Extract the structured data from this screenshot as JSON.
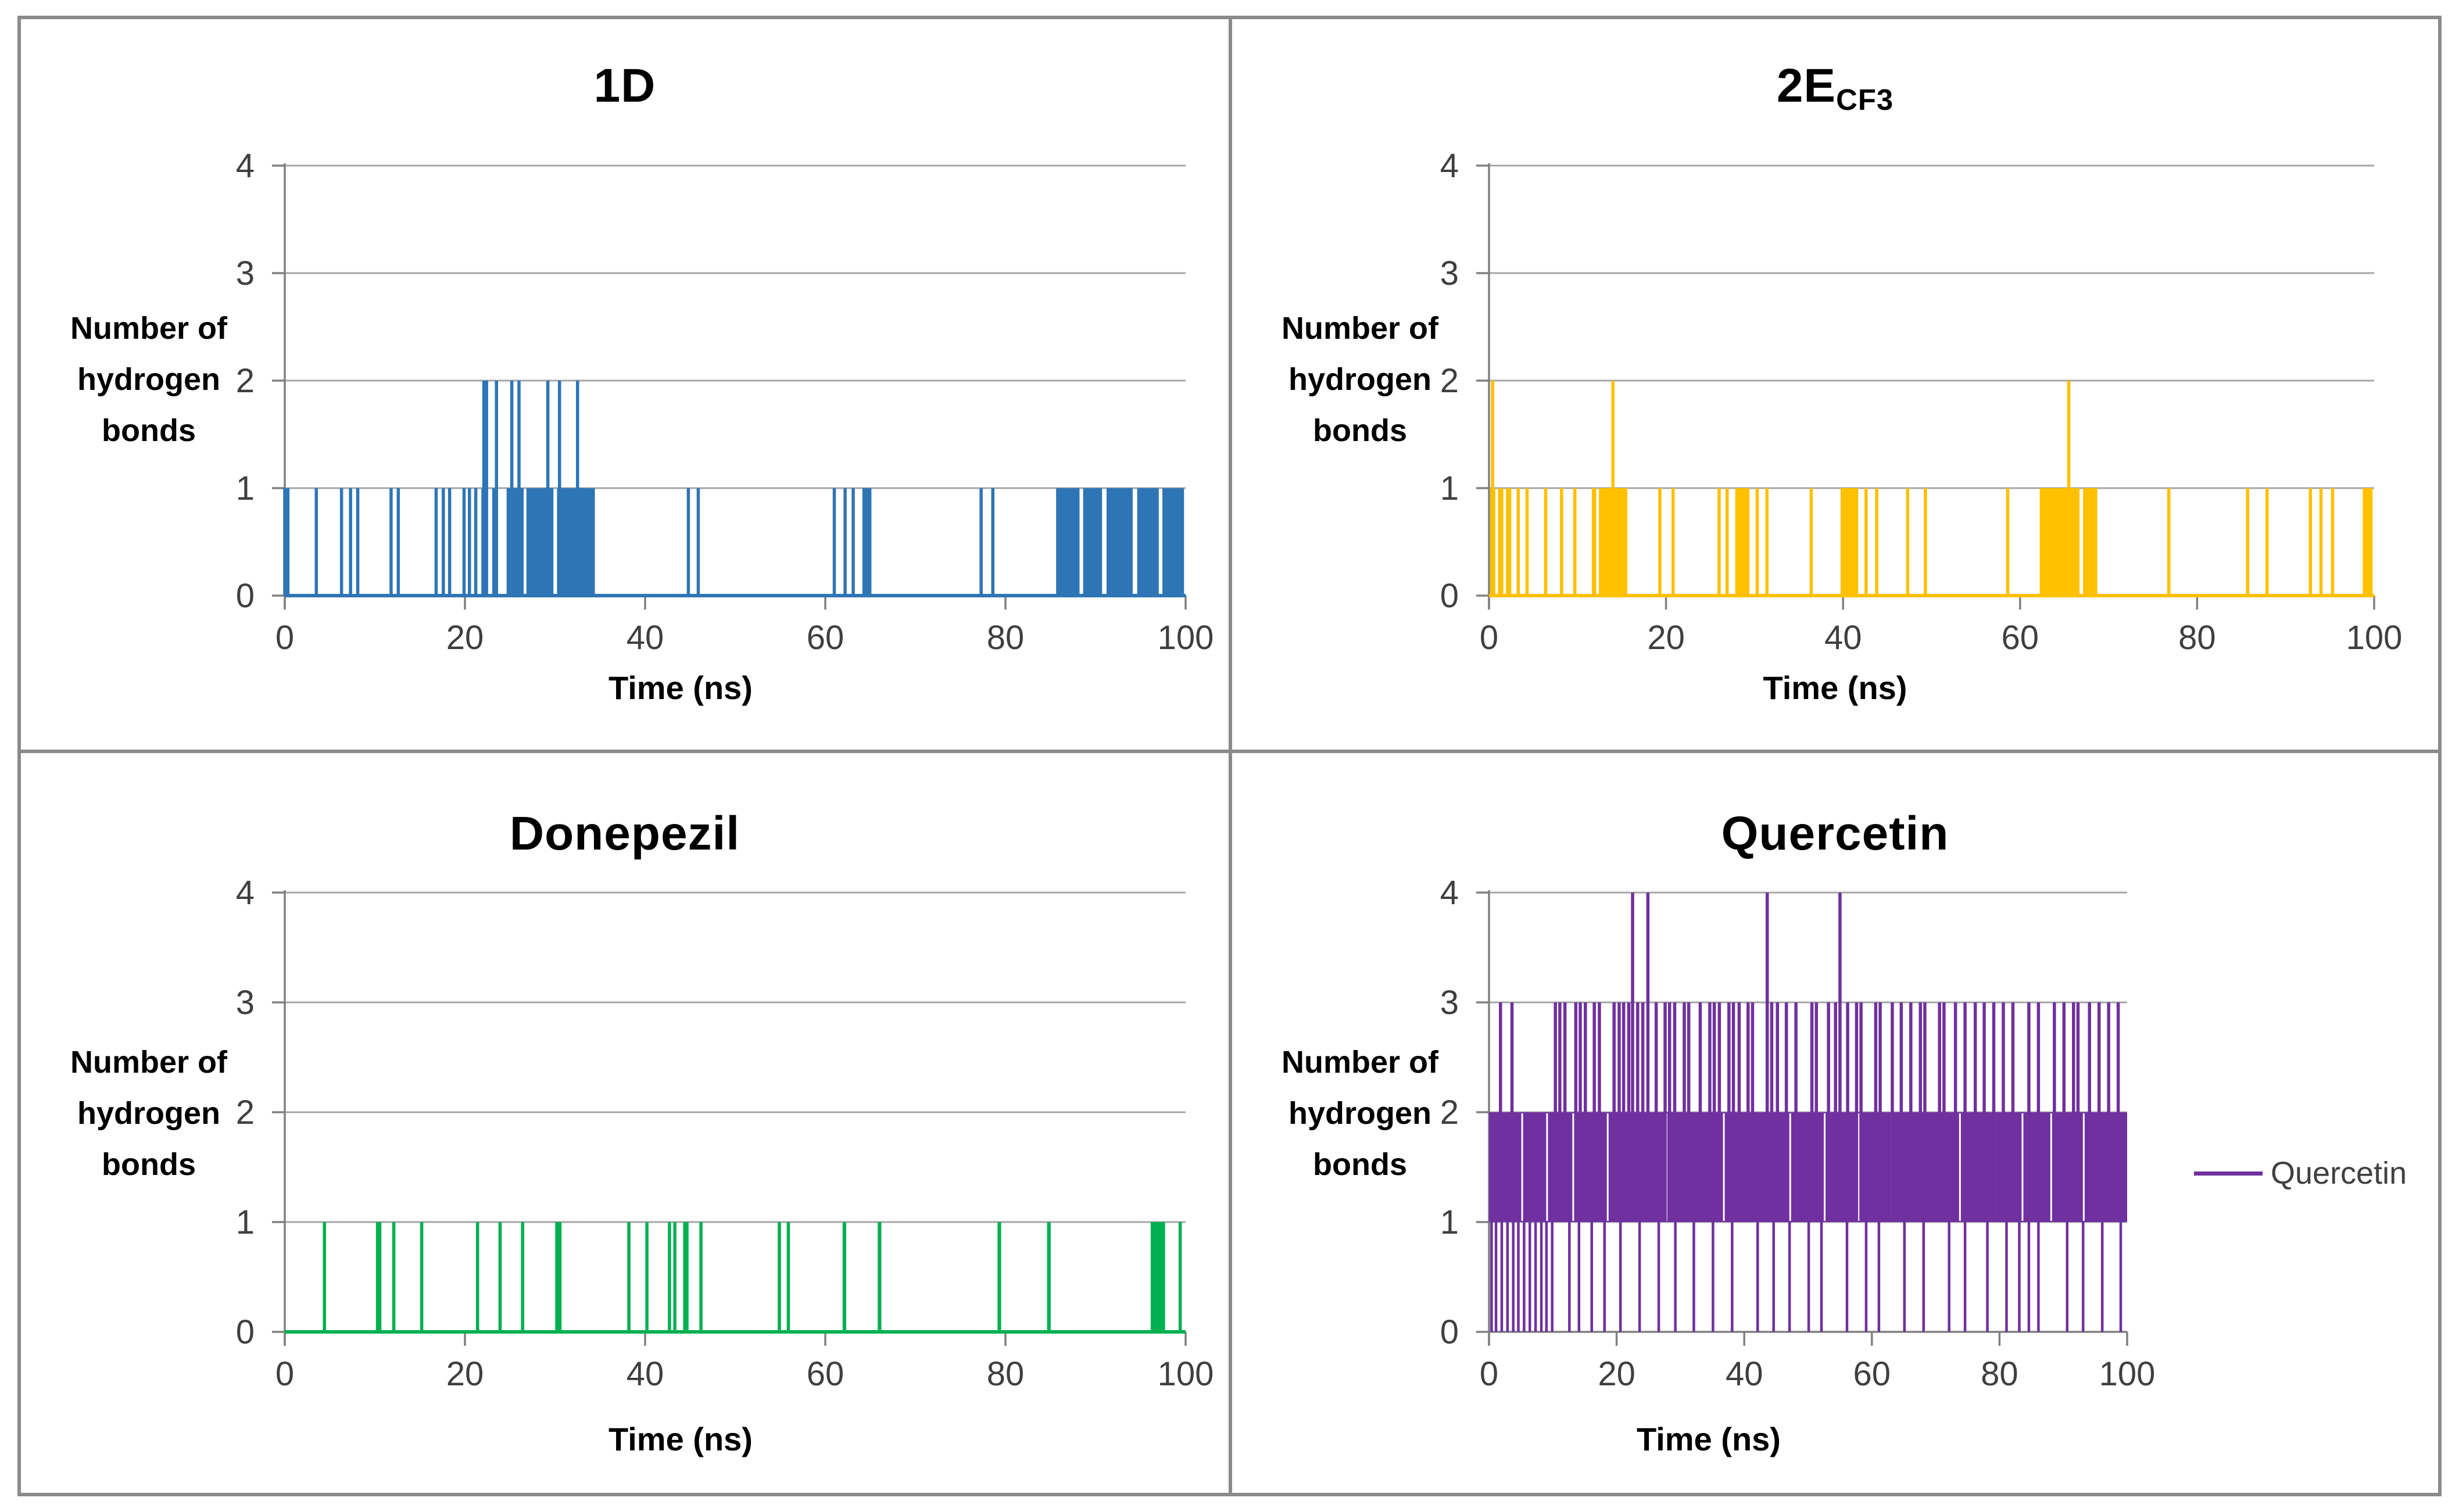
{
  "figure": {
    "ylabel_lines": [
      "Number of",
      "hydrogen",
      "bonds"
    ],
    "xlabel": "Time (ns)",
    "xticks": [
      0,
      20,
      40,
      60,
      80,
      100
    ],
    "yticks": [
      0,
      1,
      2,
      3,
      4
    ],
    "xlim": [
      0,
      100
    ],
    "ylim": [
      0,
      4
    ]
  },
  "colors": {
    "grid": "#a6a6a6",
    "axis": "#808080",
    "panel_border": "#8a8a8a",
    "tick_label": "#3f3f3f",
    "title": "#000000",
    "legend_label": "#404040",
    "series_1d": "#2e75b6",
    "series_2ecf3": "#ffc000",
    "series_donepezil": "#00b050",
    "series_quercetin": "#7030a0"
  },
  "chart_data": [
    {
      "type": "line",
      "title": "1D",
      "title_sub": "",
      "color": "#2e75b6",
      "xlabel": "Time (ns)",
      "ylabel": "Number of hydrogen bonds",
      "xlim": [
        0,
        100
      ],
      "ylim": [
        0,
        4
      ],
      "grid": true,
      "legend": null,
      "baseline": 0,
      "level1_intervals": [
        [
          0,
          0.7
        ],
        [
          3.5,
          3.8
        ],
        [
          6.3,
          6.6
        ],
        [
          7.3,
          7.6
        ],
        [
          8.1,
          8.4
        ],
        [
          11.8,
          12.1
        ],
        [
          12.6,
          12.9
        ],
        [
          16.8,
          17.1
        ],
        [
          17.6,
          17.9
        ],
        [
          18.3,
          18.6
        ],
        [
          19.9,
          20.2
        ],
        [
          20.5,
          20.8
        ],
        [
          21.2,
          21.5
        ],
        [
          22.0,
          22.6
        ],
        [
          23.2,
          23.6
        ],
        [
          24.8,
          26.7
        ],
        [
          27.0,
          30.0
        ],
        [
          30.4,
          34.6
        ],
        [
          44.8,
          45.1
        ],
        [
          45.9,
          46.2
        ],
        [
          61.0,
          61.3
        ],
        [
          62.2,
          62.5
        ],
        [
          63.1,
          63.4
        ],
        [
          64.3,
          65.3
        ],
        [
          77.3,
          77.6
        ],
        [
          78.6,
          78.9
        ],
        [
          85.8,
          88.4
        ],
        [
          88.8,
          90.9
        ],
        [
          91.4,
          94.3
        ],
        [
          94.8,
          97.2
        ],
        [
          97.6,
          100
        ]
      ],
      "level2_spikes": [
        22.1,
        22.4,
        23.5,
        25.2,
        26.0,
        29.2,
        30.5,
        32.5
      ]
    },
    {
      "type": "line",
      "title": "2E",
      "title_sub": "CF3",
      "color": "#ffc000",
      "xlabel": "Time (ns)",
      "ylabel": "Number of hydrogen bonds",
      "xlim": [
        0,
        100
      ],
      "ylim": [
        0,
        4
      ],
      "grid": true,
      "legend": null,
      "baseline": 0,
      "level1_intervals": [
        [
          0.3,
          0.9
        ],
        [
          1.2,
          1.8
        ],
        [
          2.1,
          2.7
        ],
        [
          3.3,
          3.6
        ],
        [
          4.3,
          4.6
        ],
        [
          6.4,
          6.7
        ],
        [
          8.2,
          8.5
        ],
        [
          9.7,
          10.0
        ],
        [
          11.8,
          12.3
        ],
        [
          12.6,
          15.8
        ],
        [
          19.3,
          19.6
        ],
        [
          20.8,
          21.1
        ],
        [
          26.0,
          26.3
        ],
        [
          26.9,
          27.2
        ],
        [
          28.0,
          29.6
        ],
        [
          30.3,
          30.6
        ],
        [
          31.4,
          31.7
        ],
        [
          36.4,
          36.7
        ],
        [
          39.9,
          41.9
        ],
        [
          42.6,
          42.9
        ],
        [
          43.8,
          44.1
        ],
        [
          47.3,
          47.6
        ],
        [
          49.3,
          49.6
        ],
        [
          58.6,
          58.9
        ],
        [
          62.4,
          66.9
        ],
        [
          67.3,
          68.9
        ],
        [
          76.8,
          77.1
        ],
        [
          85.7,
          86.0
        ],
        [
          87.9,
          88.2
        ],
        [
          92.8,
          93.1
        ],
        [
          94.0,
          94.3
        ],
        [
          95.3,
          95.6
        ],
        [
          98.9,
          100
        ]
      ],
      "level2_spikes": [
        0.4,
        14.0,
        65.5
      ]
    },
    {
      "type": "line",
      "title": "Donepezil",
      "title_sub": "",
      "color": "#00b050",
      "xlabel": "Time (ns)",
      "ylabel": "Number of hydrogen bonds",
      "xlim": [
        0,
        100
      ],
      "ylim": [
        0,
        4
      ],
      "grid": true,
      "legend": null,
      "baseline": 0,
      "level1_intervals": [
        [
          4.4,
          4.7
        ],
        [
          10.3,
          10.9
        ],
        [
          12.1,
          12.4
        ],
        [
          15.2,
          15.5
        ],
        [
          21.4,
          21.7
        ],
        [
          23.9,
          24.2
        ],
        [
          26.4,
          26.7
        ],
        [
          30.2,
          30.9
        ],
        [
          38.2,
          38.5
        ],
        [
          40.2,
          40.5
        ],
        [
          42.7,
          43.0
        ],
        [
          43.3,
          43.6
        ],
        [
          44.4,
          45.0
        ],
        [
          46.2,
          46.5
        ],
        [
          54.9,
          55.2
        ],
        [
          55.9,
          56.2
        ],
        [
          62.1,
          62.5
        ],
        [
          66.0,
          66.4
        ],
        [
          79.3,
          79.7
        ],
        [
          84.8,
          85.2
        ],
        [
          96.3,
          97.9
        ],
        [
          99.4,
          99.7
        ]
      ],
      "level2_spikes": []
    },
    {
      "type": "line",
      "title": "Quercetin",
      "title_sub": "",
      "color": "#7030a0",
      "xlabel": "Time (ns)",
      "ylabel": "Number of hydrogen bonds",
      "xlim": [
        0,
        100
      ],
      "ylim": [
        0,
        4
      ],
      "grid": true,
      "legend": "Quercetin",
      "band": [
        1,
        2
      ],
      "band_range": [
        0,
        100
      ],
      "band_gaps": [
        5.2,
        9.1,
        13.2,
        18.6,
        23.3,
        27.8,
        31.2,
        36.8,
        41.3,
        47.2,
        52.6,
        57.9,
        63.1,
        68.3,
        73.8,
        79.2,
        83.6,
        88.1,
        93.2,
        97.1
      ],
      "three_spikes": [
        1.8,
        3.6,
        10.4,
        11.1,
        11.9,
        13.6,
        14.3,
        15.1,
        16.5,
        17.3,
        19.6,
        20.4,
        21.1,
        21.9,
        23.3,
        24.1,
        26.2,
        27.6,
        28.3,
        29.1,
        30.6,
        31.3,
        33.1,
        34.6,
        35.3,
        36.1,
        37.6,
        38.3,
        39.2,
        40.6,
        41.3,
        44.3,
        45.2,
        46.6,
        48.1,
        50.6,
        51.3,
        53.2,
        54.3,
        56.2,
        57.6,
        58.3,
        60.6,
        61.3,
        63.2,
        64.6,
        66.1,
        67.6,
        68.3,
        70.6,
        71.3,
        73.1,
        74.6,
        76.2,
        77.6,
        79.1,
        80.6,
        82.1,
        84.6,
        86.1,
        88.6,
        90.1,
        91.6,
        92.3,
        94.1,
        95.6,
        97.1,
        98.6
      ],
      "four_spikes": [
        22.5,
        24.9,
        43.6,
        55.0
      ],
      "zero_dips": [
        0.4,
        1.1,
        2.0,
        2.9,
        3.8,
        4.6,
        5.5,
        6.4,
        7.3,
        8.2,
        9.0,
        9.9,
        12.6,
        14.1,
        16.1,
        18.1,
        20.6,
        23.6,
        26.6,
        29.2,
        32.1,
        35.1,
        38.1,
        42.1,
        44.6,
        47.1,
        50.1,
        52.1,
        56.1,
        59.1,
        61.1,
        65.1,
        68.1,
        72.1,
        74.6,
        78.1,
        81.1,
        83.1,
        84.6,
        86.1,
        90.6,
        93.1,
        96.1,
        99.0
      ]
    }
  ]
}
